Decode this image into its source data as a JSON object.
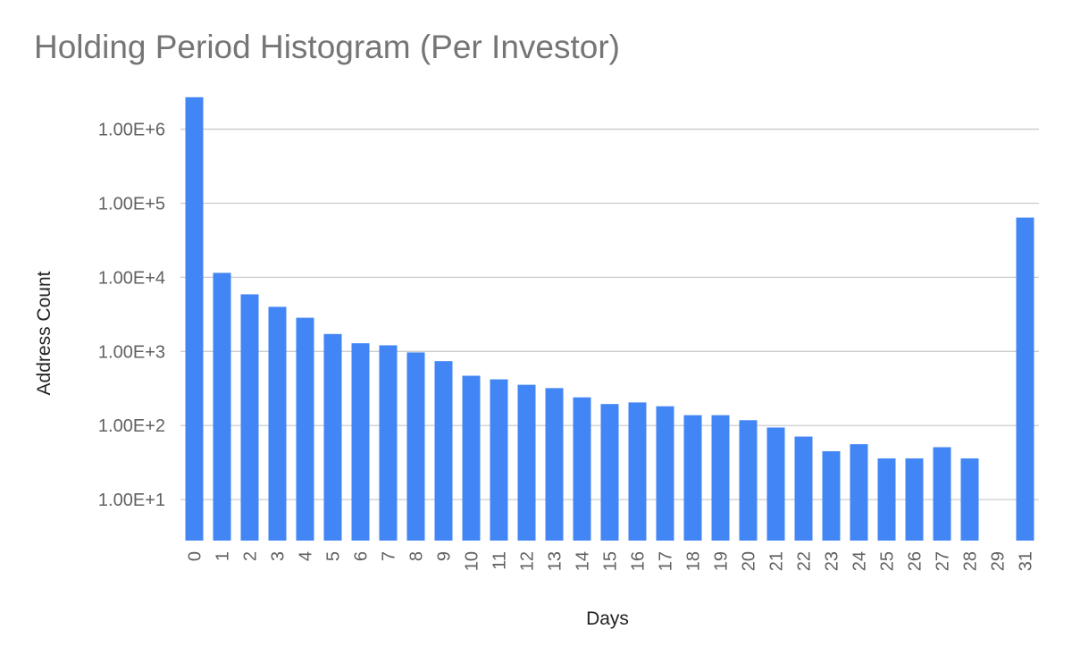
{
  "chart_data": {
    "type": "bar",
    "title": "Holding Period Histogram (Per Investor)",
    "xlabel": "Days",
    "ylabel": "Address Count",
    "y_scale": "log",
    "ylim": [
      2.8,
      3000000
    ],
    "grid": true,
    "legend": "none",
    "bar_color": "#4285f4",
    "grid_color": "#cccccc",
    "y_ticks": [
      {
        "value": 10,
        "label": "1.00E+1"
      },
      {
        "value": 100,
        "label": "1.00E+2"
      },
      {
        "value": 1000,
        "label": "1.00E+3"
      },
      {
        "value": 10000,
        "label": "1.00E+4"
      },
      {
        "value": 100000,
        "label": "1.00E+5"
      },
      {
        "value": 1000000,
        "label": "1.00E+6"
      }
    ],
    "categories": [
      "0",
      "1",
      "2",
      "3",
      "4",
      "5",
      "6",
      "7",
      "8",
      "9",
      "10",
      "11",
      "12",
      "13",
      "14",
      "15",
      "16",
      "17",
      "18",
      "19",
      "20",
      "21",
      "22",
      "23",
      "24",
      "25",
      "26",
      "27",
      "28",
      "29",
      "31"
    ],
    "values": [
      2700000,
      11500,
      5900,
      4000,
      2850,
      1720,
      1290,
      1210,
      970,
      740,
      470,
      420,
      355,
      320,
      240,
      195,
      205,
      182,
      138,
      138,
      118,
      94,
      71,
      45,
      56,
      36,
      36,
      51,
      36,
      null,
      64000
    ]
  }
}
